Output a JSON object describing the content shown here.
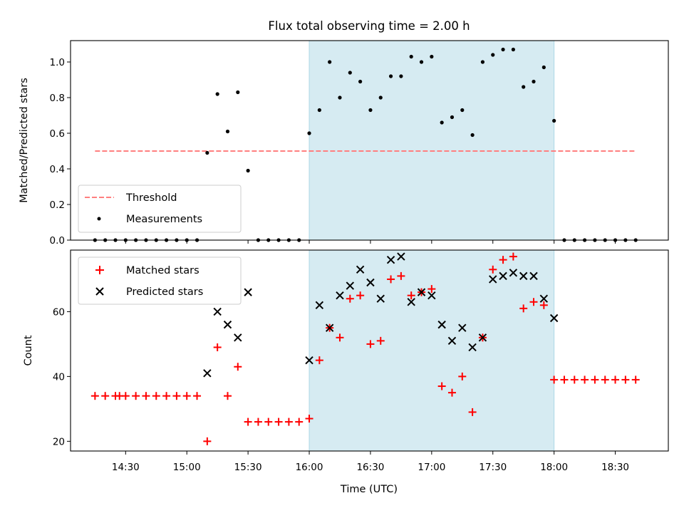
{
  "chart_data": [
    {
      "type": "scatter",
      "title": "Flux total observing time = 2.00 h",
      "xlabel": "",
      "ylabel": "Matched/Predicted stars",
      "xlim": [
        "14:03",
        "18:56"
      ],
      "ylim": [
        0,
        1.12
      ],
      "yticks": [
        "0.0",
        "0.2",
        "0.4",
        "0.6",
        "0.8",
        "1.0"
      ],
      "shaded_region": {
        "x_start": "16:00",
        "x_end": "18:00",
        "color": "#add8e6"
      },
      "legend": {
        "placement": "lower-left"
      },
      "series": [
        {
          "name": "Threshold",
          "style": "dashed-line",
          "color": "#ff7f7f",
          "x": [
            "14:15",
            "18:40"
          ],
          "y": [
            0.5,
            0.5
          ]
        },
        {
          "name": "Measurements",
          "style": "dot",
          "color": "#000000",
          "x": [
            "14:15",
            "14:20",
            "14:25",
            "14:30",
            "14:35",
            "14:40",
            "14:45",
            "14:50",
            "14:55",
            "15:00",
            "15:05",
            "15:10",
            "15:15",
            "15:20",
            "15:25",
            "15:30",
            "15:35",
            "15:40",
            "15:45",
            "15:50",
            "15:55",
            "16:00",
            "16:05",
            "16:10",
            "16:15",
            "16:20",
            "16:25",
            "16:30",
            "16:35",
            "16:40",
            "16:45",
            "16:50",
            "16:55",
            "17:00",
            "17:05",
            "17:10",
            "17:15",
            "17:20",
            "17:25",
            "17:30",
            "17:35",
            "17:40",
            "17:45",
            "17:50",
            "17:55",
            "18:00",
            "18:05",
            "18:10",
            "18:15",
            "18:20",
            "18:25",
            "18:30",
            "18:35",
            "18:40"
          ],
          "y": [
            0,
            0,
            0,
            0,
            0,
            0,
            0,
            0,
            0,
            0,
            0,
            0.49,
            0.82,
            0.61,
            0.83,
            0.39,
            0,
            0,
            0,
            0,
            0,
            0.6,
            0.73,
            1.0,
            0.8,
            0.94,
            0.89,
            0.73,
            0.8,
            0.92,
            0.92,
            1.03,
            1.0,
            1.03,
            0.66,
            0.69,
            0.73,
            0.59,
            1.0,
            1.04,
            1.07,
            1.07,
            0.86,
            0.89,
            0.97,
            0.67,
            0,
            0,
            0,
            0,
            0,
            0,
            0,
            0
          ]
        }
      ]
    },
    {
      "type": "scatter",
      "title": "",
      "xlabel": "Time (UTC)",
      "ylabel": "Count",
      "xlim": [
        "14:03",
        "18:56"
      ],
      "ylim": [
        17,
        79
      ],
      "yticks": [
        "20",
        "40",
        "60"
      ],
      "xticks": [
        "14:30",
        "15:00",
        "15:30",
        "16:00",
        "16:30",
        "17:00",
        "17:30",
        "18:00",
        "18:30"
      ],
      "shaded_region": {
        "x_start": "16:00",
        "x_end": "18:00",
        "color": "#add8e6"
      },
      "legend": {
        "placement": "upper-left"
      },
      "series": [
        {
          "name": "Matched stars",
          "marker": "plus",
          "color": "#ff0000",
          "x": [
            "14:15",
            "14:20",
            "14:25",
            "14:27",
            "14:30",
            "14:35",
            "14:40",
            "14:45",
            "14:50",
            "14:55",
            "15:00",
            "15:05",
            "15:10",
            "15:15",
            "15:20",
            "15:25",
            "15:30",
            "15:35",
            "15:40",
            "15:45",
            "15:50",
            "15:55",
            "16:00",
            "16:05",
            "16:10",
            "16:15",
            "16:20",
            "16:25",
            "16:30",
            "16:35",
            "16:40",
            "16:45",
            "16:50",
            "16:55",
            "17:00",
            "17:05",
            "17:10",
            "17:15",
            "17:20",
            "17:25",
            "17:30",
            "17:35",
            "17:40",
            "17:45",
            "17:50",
            "17:55",
            "18:00",
            "18:05",
            "18:10",
            "18:15",
            "18:20",
            "18:25",
            "18:30",
            "18:35",
            "18:40"
          ],
          "y": [
            34,
            34,
            34,
            34,
            34,
            34,
            34,
            34,
            34,
            34,
            34,
            34,
            20,
            49,
            34,
            43,
            26,
            26,
            26,
            26,
            26,
            26,
            27,
            45,
            55,
            52,
            64,
            65,
            50,
            51,
            70,
            71,
            65,
            66,
            67,
            37,
            35,
            40,
            29,
            52,
            73,
            76,
            77,
            61,
            63,
            62,
            39,
            39,
            39,
            39,
            39,
            39,
            39,
            39,
            39
          ]
        },
        {
          "name": "Predicted stars",
          "marker": "x",
          "color": "#000000",
          "x": [
            "15:10",
            "15:15",
            "15:20",
            "15:25",
            "15:30",
            "16:00",
            "16:05",
            "16:10",
            "16:15",
            "16:20",
            "16:25",
            "16:30",
            "16:35",
            "16:40",
            "16:45",
            "16:50",
            "16:55",
            "17:00",
            "17:05",
            "17:10",
            "17:15",
            "17:20",
            "17:25",
            "17:30",
            "17:35",
            "17:40",
            "17:45",
            "17:50",
            "17:55",
            "18:00"
          ],
          "y": [
            41,
            60,
            56,
            52,
            66,
            45,
            62,
            55,
            65,
            68,
            73,
            69,
            64,
            76,
            77,
            63,
            66,
            65,
            56,
            51,
            55,
            49,
            52,
            70,
            71,
            72,
            71,
            71,
            64,
            58
          ]
        }
      ]
    }
  ]
}
